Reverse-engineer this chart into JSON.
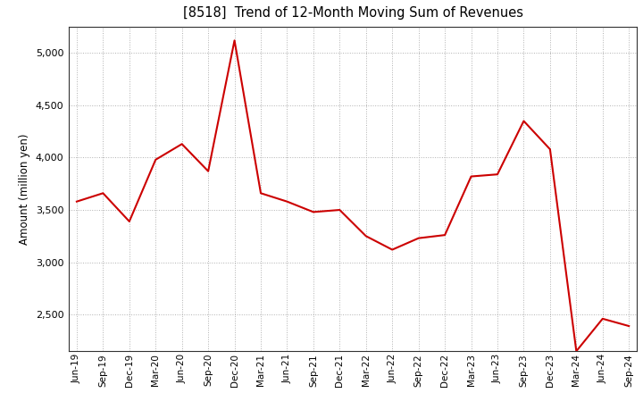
{
  "title": "[8518]  Trend of 12-Month Moving Sum of Revenues",
  "ylabel": "Amount (million yen)",
  "line_color": "#cc0000",
  "background_color": "#ffffff",
  "plot_bg_color": "#ffffff",
  "grid_color": "#b0b0b0",
  "ylim": [
    2150,
    5250
  ],
  "yticks": [
    2500,
    3000,
    3500,
    4000,
    4500,
    5000
  ],
  "labels": [
    "Jun-19",
    "Sep-19",
    "Dec-19",
    "Mar-20",
    "Jun-20",
    "Sep-20",
    "Dec-20",
    "Mar-21",
    "Jun-21",
    "Sep-21",
    "Dec-21",
    "Mar-22",
    "Jun-22",
    "Sep-22",
    "Dec-22",
    "Mar-23",
    "Jun-23",
    "Sep-23",
    "Dec-23",
    "Mar-24",
    "Jun-24",
    "Sep-24"
  ],
  "values": [
    3580,
    3660,
    3390,
    3980,
    4130,
    3870,
    5120,
    3660,
    3580,
    3480,
    3500,
    3250,
    3120,
    3230,
    3260,
    3820,
    3840,
    4350,
    4080,
    2150,
    2460,
    2390
  ]
}
